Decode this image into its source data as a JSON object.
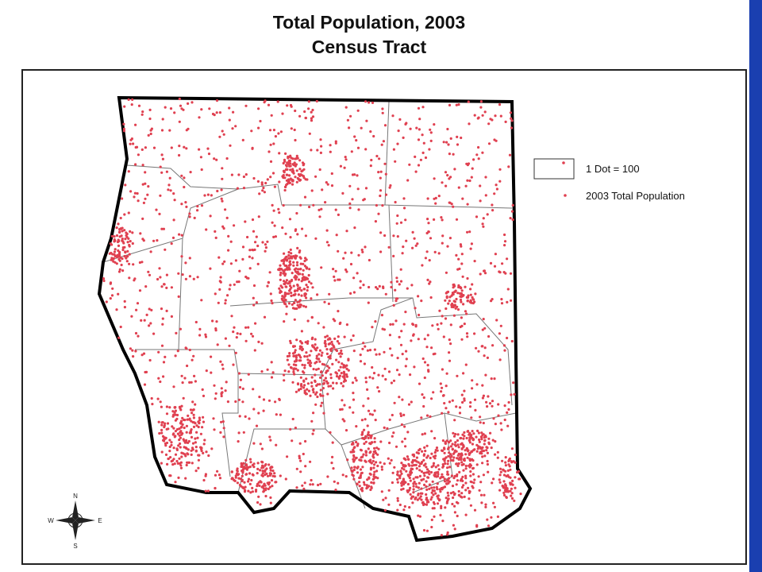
{
  "header": {
    "title": "Total Population, 2003",
    "subtitle": "Census Tract"
  },
  "legend": {
    "scale": "1 Dot = 100",
    "label": "2003 Total Population"
  },
  "compass": {
    "north": "N",
    "south": "S",
    "east": "E",
    "west": "W"
  }
}
